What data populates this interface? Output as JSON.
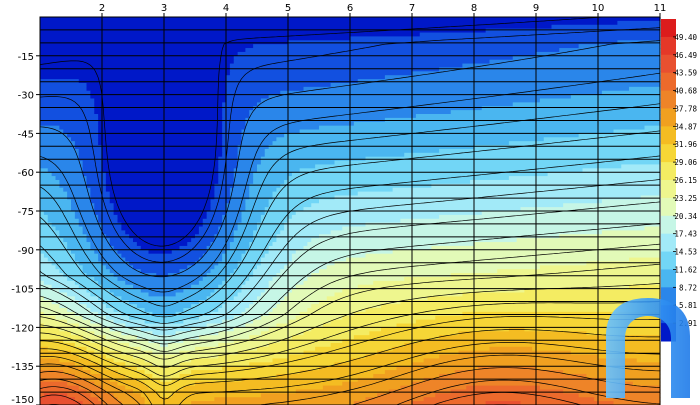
{
  "chart_data": {
    "type": "heatmap",
    "subtype": "filled-contour",
    "x_ticks": [
      2,
      3,
      4,
      5,
      6,
      7,
      8,
      9,
      10,
      11
    ],
    "y_ticks": [
      -15,
      -30,
      -45,
      -60,
      -75,
      -90,
      -105,
      -120,
      -135,
      -150
    ],
    "x_tick_labels": [
      "2",
      "3",
      "4",
      "5",
      "6",
      "7",
      "8",
      "9",
      "10",
      "11"
    ],
    "y_tick_labels": [
      "-15",
      "-30",
      "-45",
      "-60",
      "-75",
      "-90",
      "-105",
      "-120",
      "-135",
      "-150"
    ],
    "xlim": [
      1,
      11
    ],
    "ylim": [
      -150,
      0
    ],
    "x_axis_position": "top",
    "y_axis_position": "left",
    "grid": true,
    "legend_placement": "right",
    "colorbar_labels": [
      "49.40",
      "46.49",
      "43.59",
      "40.68",
      "37.78",
      "34.87",
      "31.96",
      "29.06",
      "26.15",
      "23.25",
      "20.34",
      "17.43",
      "14.53",
      "11.62",
      "8.72",
      "5.81",
      "2.91"
    ],
    "colorbar_min": 0,
    "colorbar_max": 52.3,
    "levels": [
      2.91,
      5.81,
      8.72,
      11.62,
      14.53,
      17.43,
      20.34,
      23.25,
      26.15,
      29.06,
      31.96,
      34.87,
      37.78,
      40.68,
      43.59,
      46.49,
      49.4
    ],
    "colors": [
      "#0018c8",
      "#1250e0",
      "#2a86ea",
      "#4ab6f0",
      "#72d6f6",
      "#a2eaf8",
      "#c6f6e6",
      "#e2fab8",
      "#eef68e",
      "#f4ec62",
      "#f6d636",
      "#f4bc22",
      "#f0a020",
      "#ee8428",
      "#ec6a2c",
      "#e85030",
      "#e43828",
      "#dc1c1c"
    ],
    "annotations": [],
    "logo": {
      "shape": "arch",
      "color": "#4aa8f8"
    }
  }
}
